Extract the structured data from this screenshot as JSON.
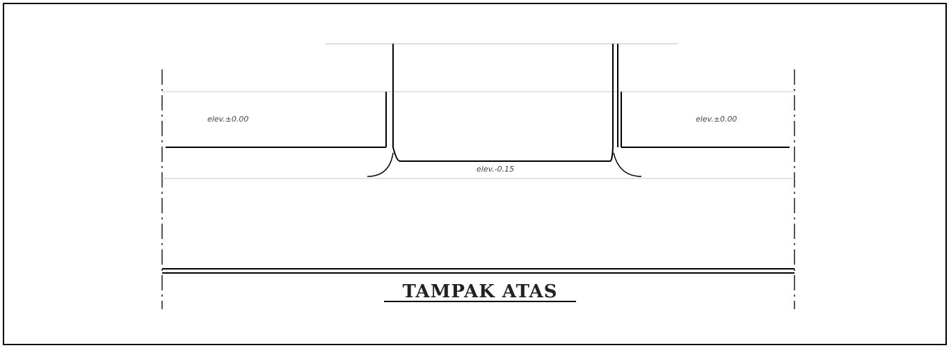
{
  "diagram": {
    "title": "TAMPAK ATAS",
    "labels": {
      "left_area": "elev.±0.00",
      "right_area": "elev.±0.00",
      "center_area": "elev.-0.15"
    },
    "colors": {
      "line": "#000000",
      "thin_line": "#9a9a9a",
      "dash_line": "#555555"
    }
  }
}
